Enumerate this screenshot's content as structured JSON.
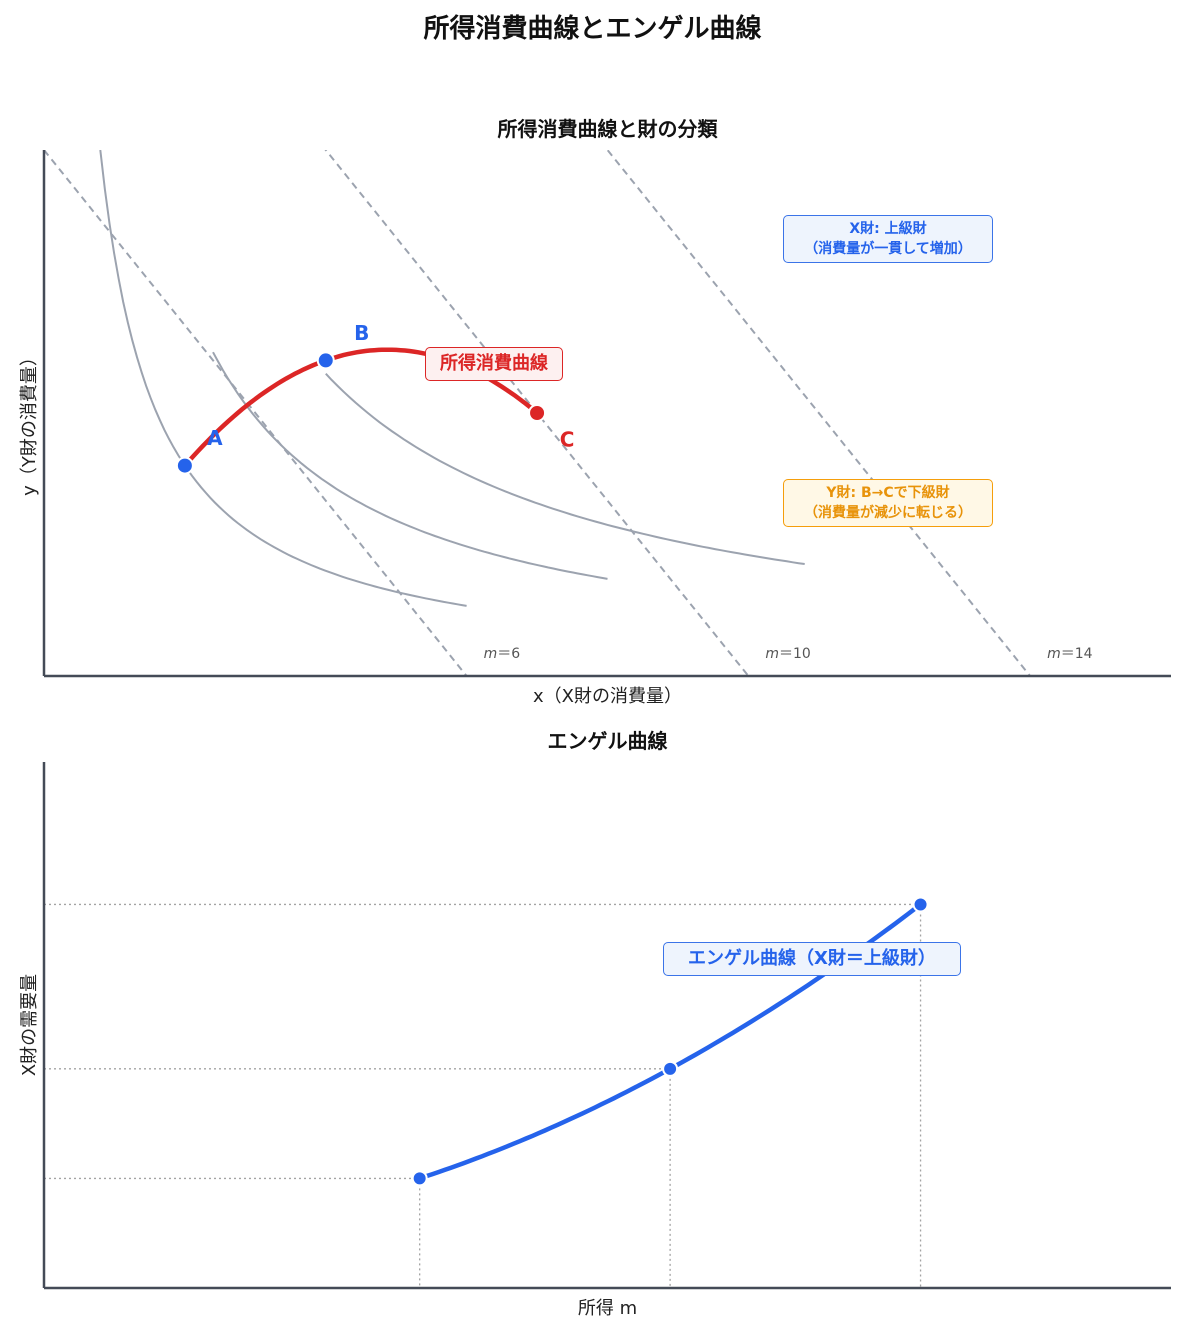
{
  "figure": {
    "title": "所得消費曲線とエンゲル曲線"
  },
  "colors": {
    "axis": "#444b57",
    "indifference": "#9ca3af",
    "budget": "#9ca3af",
    "icc": "#dc2626",
    "point_blue": "#2563eb",
    "point_red": "#dc2626",
    "engel": "#2563eb",
    "guide": "#a3a3a3",
    "text_gray": "#555555"
  },
  "chart_data": [
    {
      "type": "line",
      "title": "所得消費曲線と財の分類",
      "xlabel": "x（X財の消費量）",
      "ylabel": "y（Y財の消費量）",
      "xlim": [
        0,
        20
      ],
      "ylim": [
        0,
        15
      ],
      "grid": false,
      "budget_lines": [
        {
          "label_var": "m",
          "label_eq": "＝",
          "label_val": "6",
          "m": 6,
          "px": 0.8,
          "py": 0.4
        },
        {
          "label_var": "m",
          "label_eq": "＝",
          "label_val": "10",
          "m": 10,
          "px": 0.8,
          "py": 0.4
        },
        {
          "label_var": "m",
          "label_eq": "＝",
          "label_val": "14",
          "m": 14,
          "px": 0.8,
          "py": 0.4
        }
      ],
      "indifference_curves": [
        {
          "c": 15,
          "x0": 1,
          "x1": 7.5
        },
        {
          "c": 27.7,
          "x0": 3,
          "x1": 10
        },
        {
          "c": 43.1,
          "x0": 5,
          "x1": 13.5
        }
      ],
      "points": [
        {
          "label": "A",
          "x": 2.5,
          "y": 6,
          "color": "point_blue"
        },
        {
          "label": "B",
          "x": 5,
          "y": 9,
          "color": "point_blue"
        },
        {
          "label": "C",
          "x": 8.75,
          "y": 7.5,
          "color": "point_red"
        }
      ],
      "icc_series": {
        "name": "所得消費曲線",
        "x": [
          2.5,
          5,
          8.75
        ],
        "y": [
          6,
          9,
          7.5
        ]
      },
      "annotations": [
        {
          "text": [
            "X財: 上級財",
            "（消費量が一貫して増加）"
          ],
          "color": "point_blue",
          "placement": "upper-right"
        },
        {
          "text": [
            "Y財: B→Cで下級財",
            "（消費量が減少に転じる）"
          ],
          "color": "#f59e0b",
          "placement": "lower-right"
        }
      ]
    },
    {
      "type": "line",
      "title": "エンゲル曲線",
      "xlabel": "所得 m",
      "ylabel": "X財の需要量",
      "xlim": [
        0,
        18
      ],
      "ylim": [
        0,
        12
      ],
      "grid": false,
      "series": [
        {
          "name": "エンゲル曲線（X財＝上級財）",
          "x": [
            6,
            10,
            14
          ],
          "y": [
            2.5,
            5,
            8.75
          ]
        }
      ]
    }
  ]
}
